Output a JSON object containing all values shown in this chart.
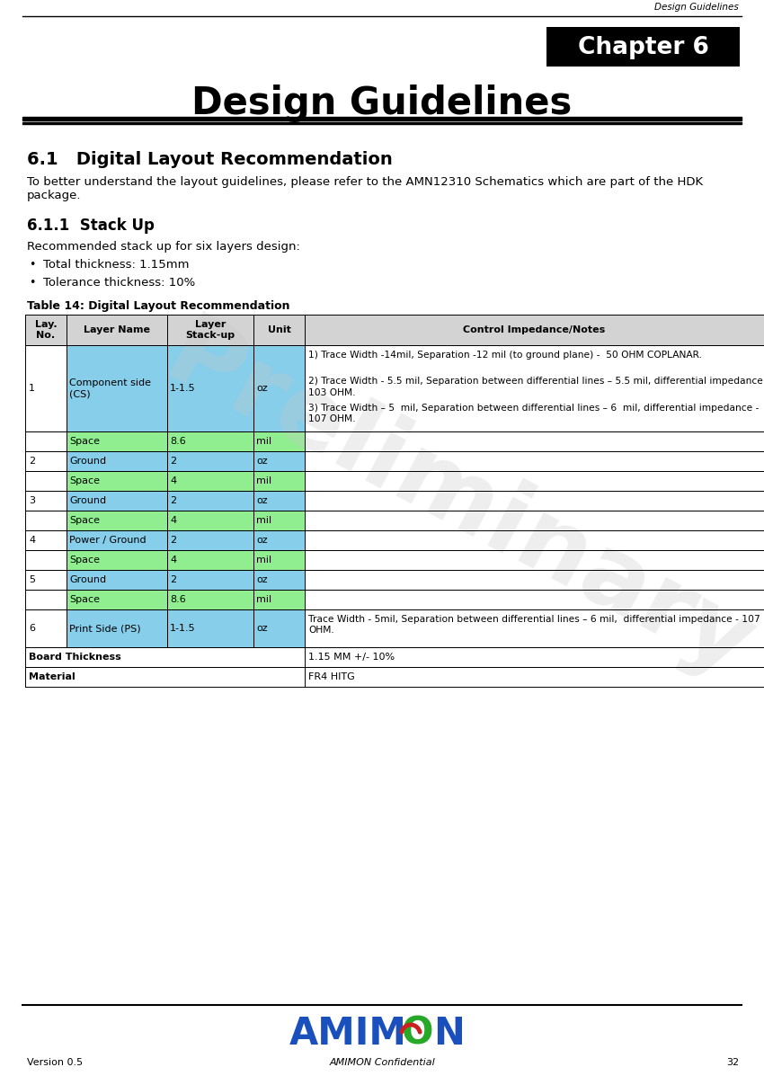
{
  "page_width": 8.5,
  "page_height": 11.97,
  "header_text": "Design Guidelines",
  "chapter_box_text": "Chapter 6",
  "title_text": "Design Guidelines",
  "section_title": "6.1   Digital Layout Recommendation",
  "intro_text": "To better understand the layout guidelines, please refer to the AMN12310 Schematics which are part of the HDK\npackage.",
  "subsection_title": "6.1.1  Stack Up",
  "subsection_text": "Recommended stack up for six layers design:",
  "bullet1": "Total thickness: 1.15mm",
  "bullet2": "Tolerance thickness: 10%",
  "table_title": "Table 14: Digital Layout Recommendation",
  "col_headers": [
    "Lay.\nNo.",
    "Layer Name",
    "Layer\nStack-up",
    "Unit",
    "Control Impedance/Notes"
  ],
  "header_bg": "#d3d3d3",
  "blue_bg": "#87ceeb",
  "green_bg": "#90ee90",
  "white_bg": "#ffffff",
  "footer_version": "Version 0.5",
  "footer_confidential": "AMIMON Confidential",
  "footer_page": "32",
  "watermark_text": "Preliminary",
  "logo_blue": "#1a4fbe",
  "logo_green": "#28a828",
  "logo_red": "#cc2020",
  "row1_notes": [
    "1) Trace Width -14mil, Separation -12 mil (to ground plane) -  50 OHM COPLANAR.",
    "2) Trace Width - 5.5 mil, Separation between differential lines – 5.5 mil, differential impedance -\n103 OHM.",
    "3) Trace Width – 5  mil, Separation between differential lines – 6  mil, differential impedance -\n107 OHM."
  ],
  "row6_notes": "Trace Width - 5mil, Separation between differential lines – 6 mil,  differential impedance - 107\nOHM."
}
